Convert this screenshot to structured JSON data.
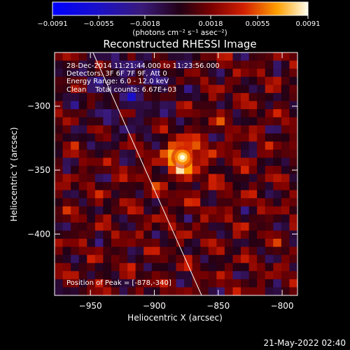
{
  "chart_data": {
    "type": "heatmap",
    "title": "Reconstructed RHESSI Image",
    "xlabel": "Heliocentric X (arcsec)",
    "ylabel": "Heliocentric Y (arcsec)",
    "xlim": [
      -978,
      -788
    ],
    "ylim": [
      -448,
      -258
    ],
    "xticks": [
      {
        "value": -950,
        "label": "−950"
      },
      {
        "value": -900,
        "label": "−900"
      },
      {
        "value": -850,
        "label": "−850"
      },
      {
        "value": -800,
        "label": "−800"
      }
    ],
    "yticks": [
      {
        "value": -300,
        "label": "−300"
      },
      {
        "value": -350,
        "label": "−350"
      },
      {
        "value": -400,
        "label": "−400"
      }
    ],
    "colorbar": {
      "unit": "(photons cm⁻² s⁻¹ asec⁻²)",
      "ticks": [
        "−0.0091",
        "−0.0055",
        "−0.0018",
        "0.0018",
        "0.0055",
        "0.0091"
      ],
      "range": [
        -0.0091,
        0.0091
      ]
    },
    "info_lines": [
      "28-Dec-2014 11:21:44.000 to 11:23:56.000",
      "Detectors: 3F 6F 7F 9F, Att 0",
      "Energy Range: 6.0 - 12.0 keV",
      "Clean    Total counts: 6.67E+03"
    ],
    "peak_text": "Position of Peak = [-878,-340]",
    "peak": {
      "x": -878,
      "y": -340,
      "value": 0.0091
    },
    "limb": [
      {
        "x": -948,
        "y": -258
      },
      {
        "x": -863,
        "y": -448
      }
    ],
    "grid": false
  },
  "footer": {
    "date": "21-May-2022 02:40"
  }
}
